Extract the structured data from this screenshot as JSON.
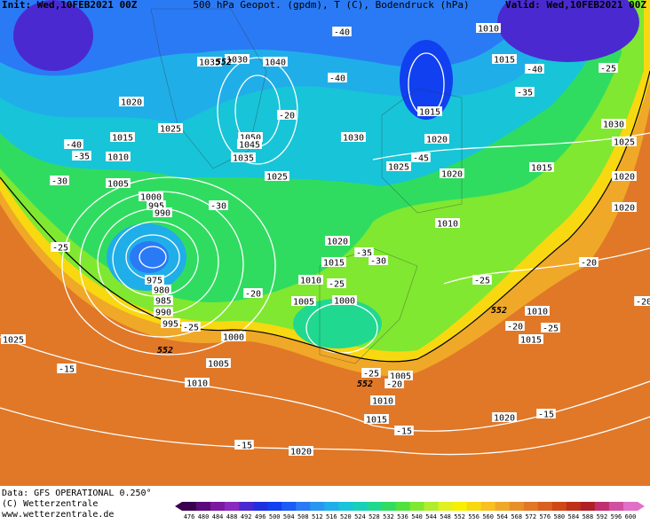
{
  "header": {
    "init": "Init: Wed,10FEB2021 00Z",
    "parameters": "500 hPa Geopot. (gpdm), T (C), Bodendruck (hPa)",
    "valid": "Valid: Wed,10FEB2021 00Z"
  },
  "footer": {
    "source": "Data: GFS OPERATIONAL 0.250°",
    "copyright": "(C) Wetterzentrale",
    "url": "www.wetterzentrale.de"
  },
  "colorbar": {
    "values": [
      476,
      480,
      484,
      488,
      492,
      496,
      500,
      504,
      508,
      512,
      516,
      520,
      524,
      528,
      532,
      536,
      540,
      544,
      548,
      552,
      556,
      560,
      564,
      568,
      572,
      576,
      580,
      584,
      588,
      592,
      596,
      600
    ],
    "colors": [
      "#3a0050",
      "#5a0a7a",
      "#7a1aa0",
      "#8a2ac0",
      "#4a2ad0",
      "#2030e0",
      "#1040f0",
      "#1a5cf5",
      "#2a7af5",
      "#2a96f0",
      "#20aee8",
      "#18c4d8",
      "#18d0b8",
      "#20d890",
      "#30dc60",
      "#50e040",
      "#80e830",
      "#b0ec30",
      "#e0f020",
      "#f8f000",
      "#f8d810",
      "#f8c020",
      "#f0a828",
      "#e89028",
      "#e07828",
      "#d86020",
      "#d04818",
      "#c03018",
      "#b02028",
      "#c03070",
      "#d050a0",
      "#e070c8"
    ]
  },
  "map": {
    "pressure_labels": [
      "1010",
      "1015",
      "1035",
      "1030",
      "1040",
      "1020",
      "1025",
      "1015",
      "1010",
      "1050",
      "1045",
      "1035",
      "1030",
      "1015",
      "1020",
      "1025",
      "1020",
      "1015",
      "1030",
      "1025",
      "1020",
      "1020",
      "1005",
      "1000",
      "995",
      "990",
      "1025",
      "1010",
      "1020",
      "1015",
      "1010",
      "1005",
      "1000",
      "975",
      "980",
      "985",
      "990",
      "995",
      "1000",
      "1005",
      "1010",
      "1025",
      "1005",
      "1010",
      "1015",
      "1020",
      "1020",
      "1015",
      "1010"
    ],
    "temperature_labels": [
      "-40",
      "-40",
      "-35",
      "-25",
      "-40",
      "-20",
      "-40",
      "-35",
      "-30",
      "-30",
      "-45",
      "-25",
      "-20",
      "-35",
      "-30",
      "-25",
      "-25",
      "-20",
      "-20",
      "-20",
      "-25",
      "-25",
      "-15",
      "-25",
      "-20",
      "-15",
      "-15",
      "-15"
    ],
    "height_labels": [
      "552",
      "552",
      "552",
      "552"
    ]
  }
}
